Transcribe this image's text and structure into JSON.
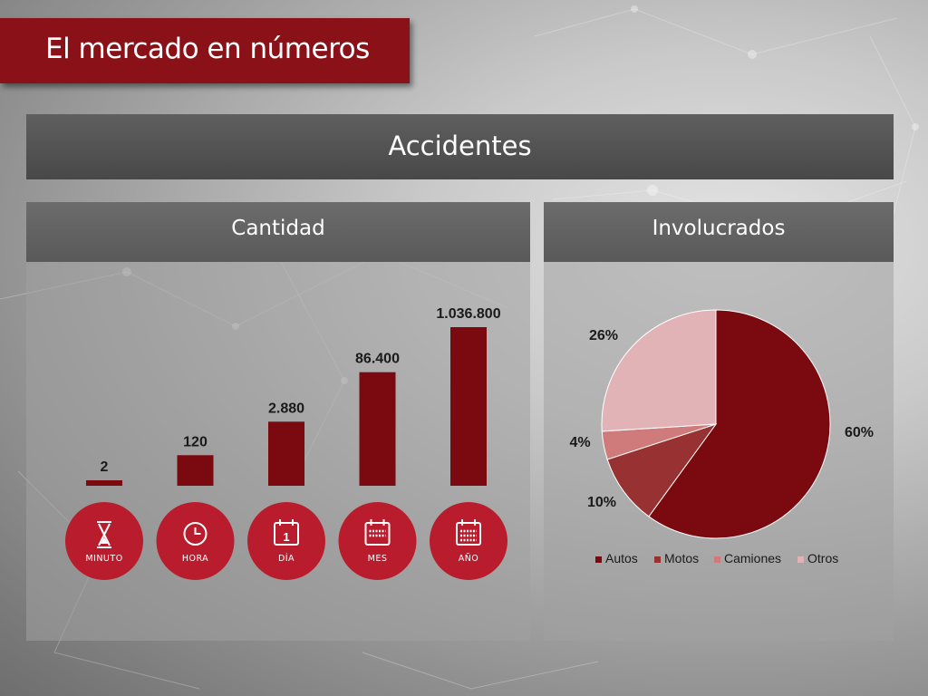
{
  "slide": {
    "title": "El mercado en números",
    "section": "Accidentes"
  },
  "colors": {
    "banner": "#8a1118",
    "bar": "#7a0a10",
    "circle": "#b91c2c",
    "autos": "#7a0a10",
    "motos": "#983232",
    "camiones": "#d07b7b",
    "otros": "#e2b3b6"
  },
  "chart_data": [
    {
      "type": "bar",
      "title": "Cantidad",
      "categories": [
        "MINUTO",
        "HORA",
        "DÍA",
        "MES",
        "AÑO"
      ],
      "icons": [
        "hourglass-icon",
        "clock-icon",
        "calendar-day-icon",
        "calendar-month-icon",
        "calendar-year-icon"
      ],
      "values": [
        2,
        120,
        2880,
        86400,
        1036800
      ],
      "value_labels": [
        "2",
        "120",
        "2.880",
        "86.400",
        "1.036.800"
      ],
      "scale": "non-linear (visual only)",
      "grid": false
    },
    {
      "type": "pie",
      "title": "Involucrados",
      "labels": [
        "Autos",
        "Motos",
        "Camiones",
        "Otros"
      ],
      "values": [
        60,
        10,
        4,
        26
      ],
      "value_labels": [
        "60%",
        "10%",
        "4%",
        "26%"
      ],
      "legend": "bottom"
    }
  ]
}
